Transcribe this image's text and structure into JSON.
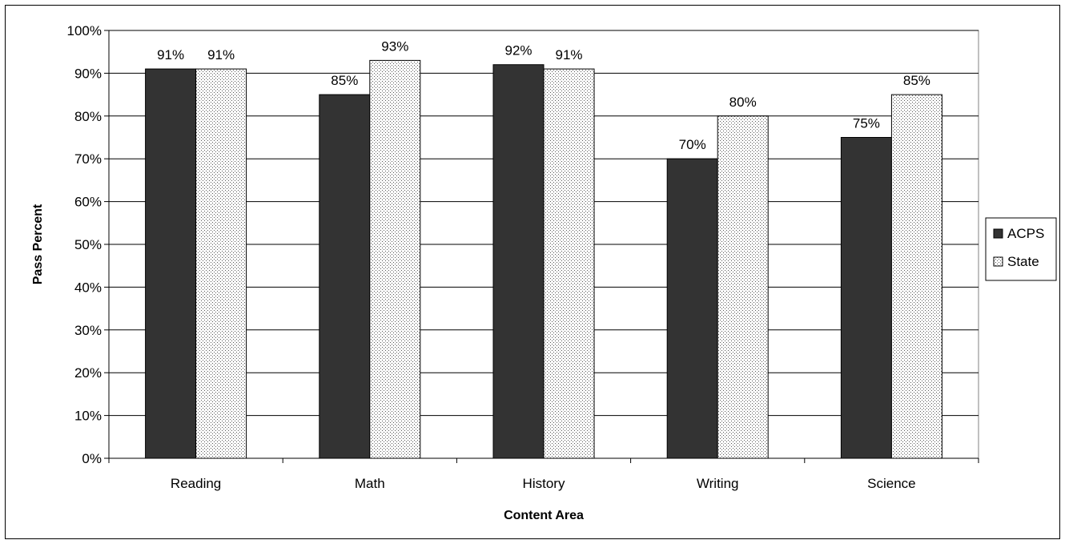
{
  "chart_data": {
    "type": "bar",
    "title": "",
    "xlabel": "Content Area",
    "ylabel": "Pass Percent",
    "categories": [
      "Reading",
      "Math",
      "History",
      "Writing",
      "Science"
    ],
    "series": [
      {
        "name": "ACPS",
        "values": [
          91,
          85,
          92,
          70,
          75
        ],
        "color": "#333333",
        "pattern": "solid"
      },
      {
        "name": "State",
        "values": [
          91,
          93,
          91,
          80,
          85
        ],
        "color": "#ffffff",
        "pattern": "dotted"
      }
    ],
    "data_labels": {
      "ACPS": [
        "91%",
        "85%",
        "92%",
        "70%",
        "75%"
      ],
      "State": [
        "91%",
        "93%",
        "91%",
        "80%",
        "85%"
      ]
    },
    "y_ticks": [
      "0%",
      "10%",
      "20%",
      "30%",
      "40%",
      "50%",
      "60%",
      "70%",
      "80%",
      "90%",
      "100%"
    ],
    "ylim": [
      0,
      100
    ],
    "grid": true,
    "legend_position": "right"
  }
}
